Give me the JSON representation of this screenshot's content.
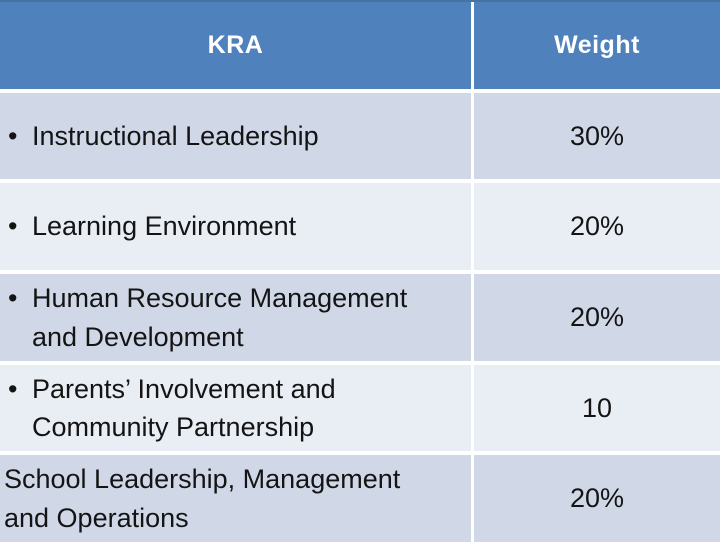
{
  "colors": {
    "header_bg": "#4f81bd",
    "band_dark": "#d0d8e8",
    "band_light": "#e9edf4",
    "divider": "#ffffff",
    "header_text": "#ffffff",
    "body_text": "#141414"
  },
  "table": {
    "bullet_char": "•",
    "columns": [
      {
        "label": "KRA"
      },
      {
        "label": "Weight"
      }
    ],
    "rows": [
      {
        "kra": "Instructional Leadership",
        "weight": "30%"
      },
      {
        "kra": "Learning Environment",
        "weight": "20%"
      },
      {
        "kra": "Human Resource Management\nand Development",
        "weight": "20%"
      },
      {
        "kra": "Parents’ Involvement and\nCommunity Partnership",
        "weight": "10"
      },
      {
        "kra": "School Leadership, Management\nand Operations",
        "weight": "20%"
      }
    ]
  }
}
